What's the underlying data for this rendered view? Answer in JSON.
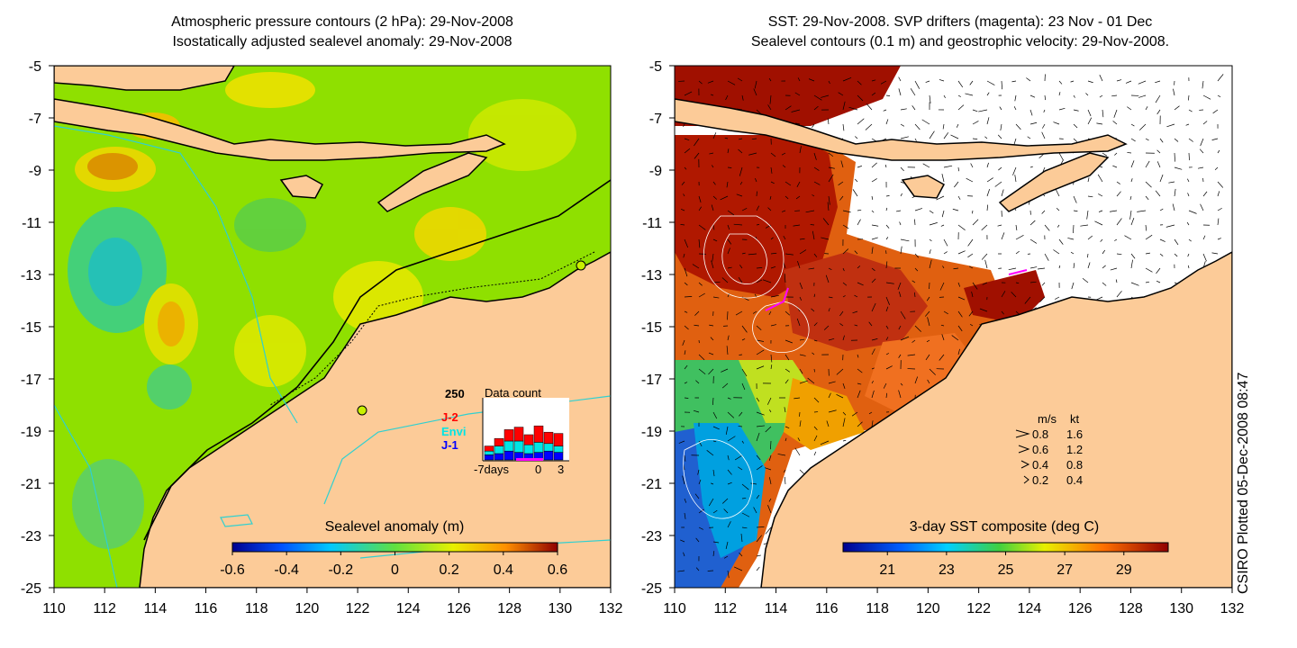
{
  "left_panel": {
    "title_line1": "Atmospheric pressure contours (2 hPa): 29-Nov-2008",
    "title_line2": "Isostatically adjusted sealevel anomaly: 29-Nov-2008",
    "colorbar_label": "Sealevel anomaly (m)",
    "colorbar_ticks": [
      "-0.6",
      "-0.4",
      "-0.2",
      "0",
      "0.2",
      "0.4",
      "0.6"
    ],
    "colorbar_values": [
      -0.6,
      -0.4,
      -0.2,
      0,
      0.2,
      0.4,
      0.6
    ],
    "inset": {
      "max_label": "250",
      "title": "Data count",
      "series": [
        {
          "name": "J-2",
          "color": "#ff0000"
        },
        {
          "name": "Envi",
          "color": "#00e5e5"
        },
        {
          "name": "J-1",
          "color": "#0000ff"
        }
      ],
      "xlabel_left": "-7days",
      "xlabel_mid": "0",
      "xlabel_right": "3",
      "bars": [
        {
          "j1": 20,
          "envi": 15,
          "j2": 20
        },
        {
          "j1": 25,
          "envi": 30,
          "j2": 30
        },
        {
          "j1": 35,
          "envi": 40,
          "j2": 45
        },
        {
          "j1": 30,
          "envi": 45,
          "j2": 55
        },
        {
          "j1": 25,
          "envi": 35,
          "j2": 40
        },
        {
          "j1": 30,
          "envi": 40,
          "j2": 65
        },
        {
          "j1": 35,
          "envi": 30,
          "j2": 45
        },
        {
          "j1": 30,
          "envi": 25,
          "j2": 50
        }
      ]
    }
  },
  "right_panel": {
    "title_line1": "SST: 29-Nov-2008. SVP drifters (magenta): 23 Nov - 01 Dec",
    "title_line2": "Sealevel contours (0.1 m) and geostrophic velocity: 29-Nov-2008.",
    "colorbar_label": "3-day SST composite (deg C)",
    "colorbar_ticks": [
      "21",
      "23",
      "25",
      "27",
      "29"
    ],
    "colorbar_values": [
      21,
      23,
      25,
      27,
      29
    ],
    "velocity_legend": {
      "header_ms": "m/s",
      "header_kt": "kt",
      "rows": [
        {
          "ms": "0.8",
          "kt": "1.6"
        },
        {
          "ms": "0.6",
          "kt": "1.2"
        },
        {
          "ms": "0.4",
          "kt": "0.8"
        },
        {
          "ms": "0.2",
          "kt": "0.4"
        }
      ]
    }
  },
  "axes": {
    "lon_ticks": [
      "110",
      "112",
      "114",
      "116",
      "118",
      "120",
      "122",
      "124",
      "126",
      "128",
      "130",
      "132"
    ],
    "lon_values": [
      110,
      112,
      114,
      116,
      118,
      120,
      122,
      124,
      126,
      128,
      130,
      132
    ],
    "lat_ticks": [
      "-5",
      "-7",
      "-9",
      "-11",
      "-13",
      "-15",
      "-17",
      "-19",
      "-21",
      "-23",
      "-25"
    ],
    "lat_values": [
      -5,
      -7,
      -9,
      -11,
      -13,
      -15,
      -17,
      -19,
      -21,
      -23,
      -25
    ],
    "lon_range": [
      110,
      132
    ],
    "lat_range": [
      -25,
      -5
    ]
  },
  "credit": "CSIRO Plotted 05-Dec-2008 08:47",
  "colors": {
    "land": "#fccb98",
    "ocean_green": "#8fe000",
    "yellow": "#e6f000",
    "orange": "#f0a000",
    "cyan": "#30d0d0",
    "sst_dark_red": "#b01800",
    "sst_orange": "#e06010",
    "sst_blue": "#2060d0"
  }
}
